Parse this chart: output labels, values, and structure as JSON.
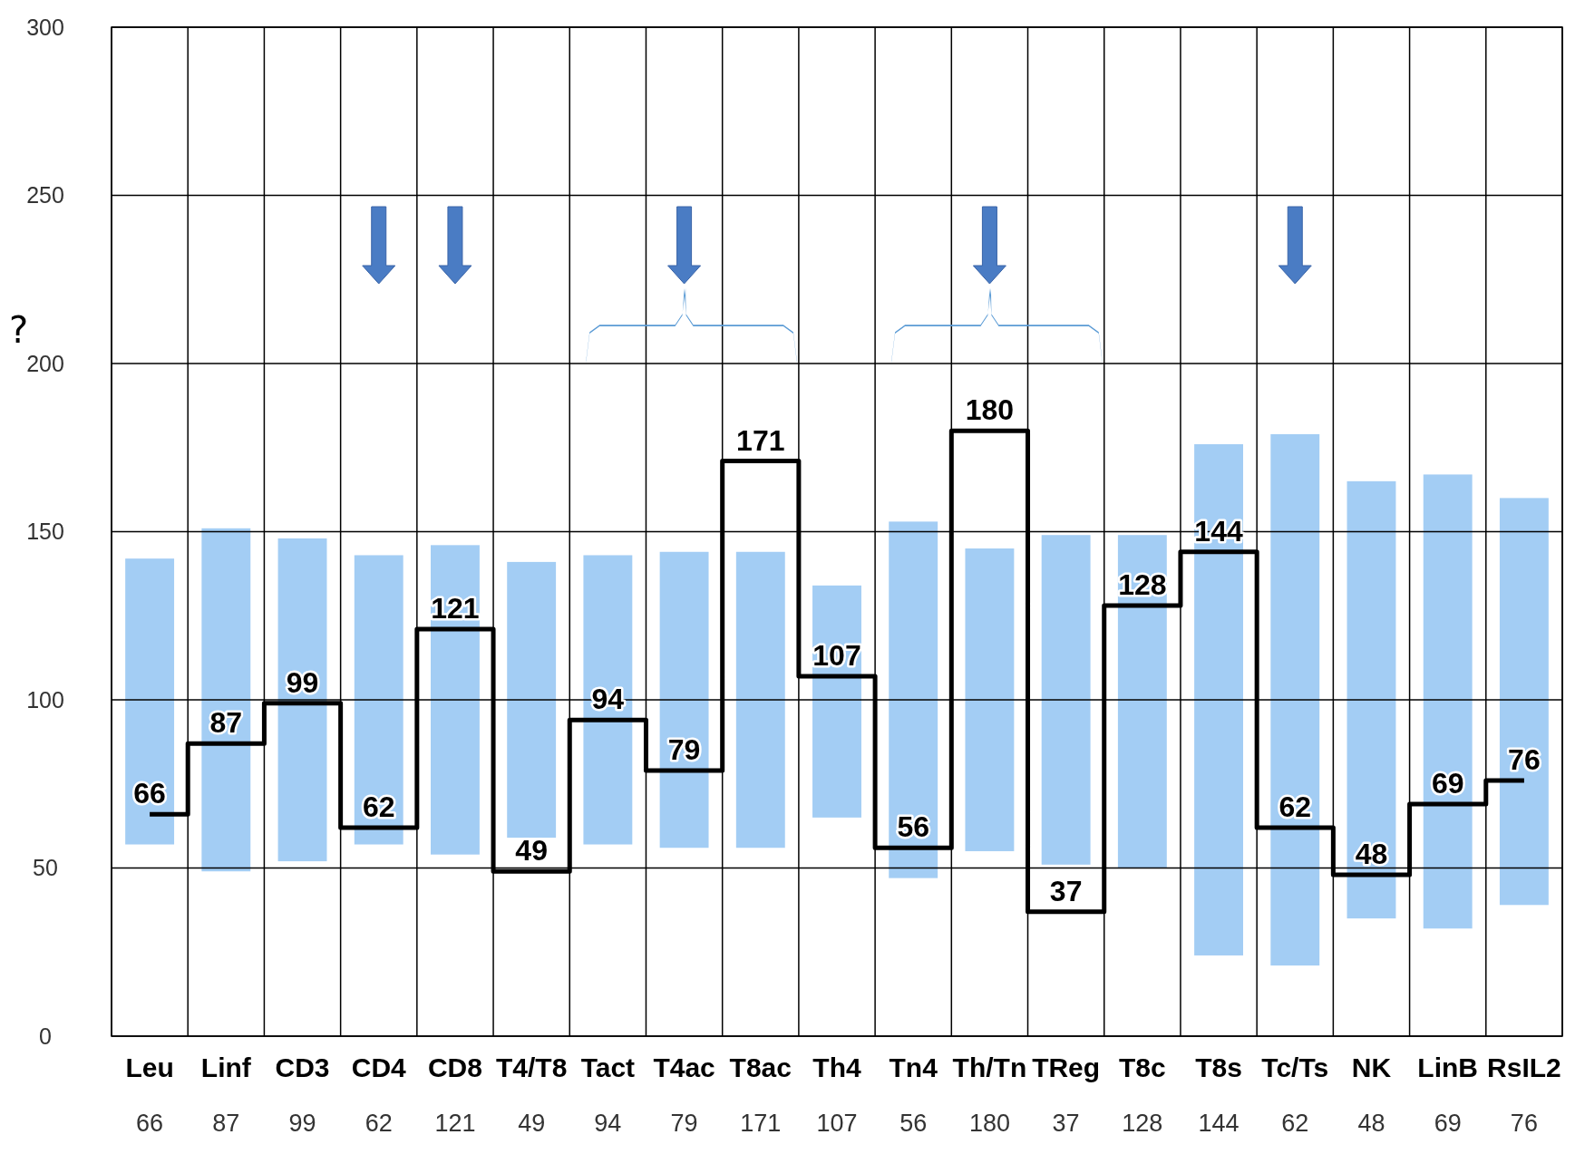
{
  "chart_data": {
    "type": "bar",
    "categories": [
      "Leu",
      "Linf",
      "CD3",
      "CD4",
      "CD8",
      "T4/T8",
      "Tact",
      "T4ac",
      "T8ac",
      "Th4",
      "Tn4",
      "Th/Tn",
      "TReg",
      "T8c",
      "T8s",
      "Tc/Ts",
      "NK",
      "LinB",
      "RsIL2"
    ],
    "series": [
      {
        "type": "bar",
        "color": "#a3cdf4",
        "base": [
          57,
          49,
          52,
          57,
          54,
          59,
          57,
          56,
          56,
          65,
          47,
          55,
          51,
          50,
          24,
          21,
          35,
          32,
          39
        ],
        "values": [
          85,
          102,
          96,
          86,
          92,
          82,
          86,
          88,
          88,
          69,
          106,
          90,
          98,
          99,
          152,
          158,
          130,
          135,
          121
        ]
      },
      {
        "type": "step",
        "color": "#000000",
        "values": [
          66,
          87,
          99,
          62,
          121,
          49,
          94,
          79,
          171,
          107,
          56,
          180,
          37,
          128,
          144,
          62,
          48,
          69,
          76
        ],
        "value_labels": [
          "66",
          "87",
          "99",
          "62",
          "121",
          "49",
          "94",
          "79",
          "171",
          "107",
          "56",
          "180",
          "37",
          "128",
          "144",
          "62",
          "48",
          "69",
          "76"
        ]
      }
    ],
    "ylim": [
      0,
      300
    ],
    "yticks": [
      0,
      50,
      100,
      150,
      200,
      250,
      300
    ],
    "grid": true,
    "annotations": [
      "?"
    ]
  }
}
